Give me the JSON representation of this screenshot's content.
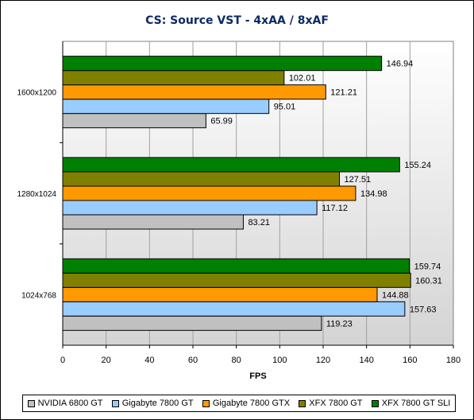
{
  "chart_data": {
    "type": "bar",
    "orientation": "horizontal",
    "title": "CS: Source VST - 4xAA / 8xAF",
    "xlabel": "FPS",
    "ylabel": "",
    "xlim": [
      0,
      180
    ],
    "xticks": [
      0,
      20,
      40,
      60,
      80,
      100,
      120,
      140,
      160,
      180
    ],
    "grid": "vertical",
    "legend_position": "bottom",
    "categories": [
      "1600x1200",
      "1280x1024",
      "1024x768"
    ],
    "series": [
      {
        "name": "NVIDIA 6800 GT",
        "color": "#c0c0c0",
        "values": [
          65.99,
          83.21,
          119.23
        ]
      },
      {
        "name": "Gigabyte 7800 GT",
        "color": "#99ccff",
        "values": [
          95.01,
          117.12,
          157.63
        ]
      },
      {
        "name": "Gigabyte 7800 GTX",
        "color": "#ff9900",
        "values": [
          121.21,
          134.98,
          144.88
        ]
      },
      {
        "name": "XFX 7800 GT",
        "color": "#808000",
        "values": [
          102.01,
          127.51,
          160.31
        ]
      },
      {
        "name": "XFX 7800 GT SLI",
        "color": "#008000",
        "values": [
          146.94,
          155.24,
          159.74
        ]
      }
    ]
  }
}
